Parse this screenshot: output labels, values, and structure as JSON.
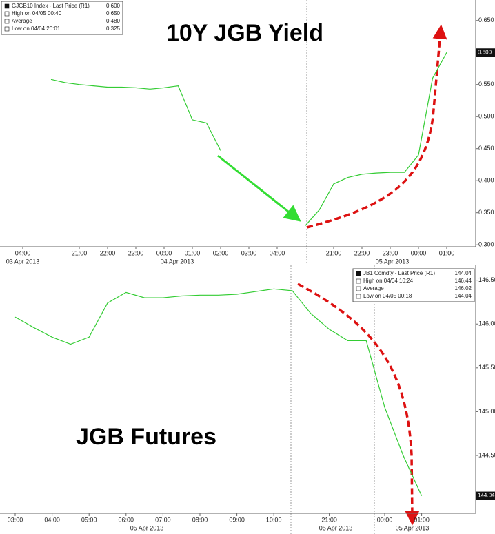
{
  "chart_data": [
    {
      "type": "line",
      "title": "10Y JGB Yield",
      "categories": [
        "04:00",
        null,
        null,
        null,
        "21:00",
        null,
        "22:00",
        null,
        "23:00",
        null,
        "00:00",
        null,
        "01:00",
        null,
        "02:00",
        null,
        "03:00",
        null,
        "04:00",
        null,
        null,
        null,
        "21:00",
        null,
        "22:00",
        null,
        "23:00",
        null,
        "00:00",
        null,
        "01:00"
      ],
      "values": [
        null,
        null,
        0.558,
        0.553,
        0.55,
        0.548,
        0.546,
        0.546,
        0.545,
        0.543,
        0.545,
        0.548,
        0.495,
        0.49,
        0.447,
        null,
        null,
        null,
        null,
        null,
        0.33,
        0.355,
        0.395,
        0.405,
        0.41,
        0.412,
        0.413,
        0.413,
        0.44,
        0.56,
        0.6
      ],
      "color": "#33cc33",
      "date_labels": [
        "03 Apr 2013",
        "04 Apr 2013",
        "05 Apr 2013"
      ],
      "ylim": [
        0.297,
        0.682
      ],
      "yticks": [
        {
          "value": 0.65,
          "label": "0.650"
        },
        {
          "value": 0.6,
          "label": "0.600"
        },
        {
          "value": 0.55,
          "label": "0.550"
        },
        {
          "value": 0.5,
          "label": "0.500"
        },
        {
          "value": 0.45,
          "label": "0.450"
        },
        {
          "value": 0.4,
          "label": "0.400"
        },
        {
          "value": 0.35,
          "label": "0.350"
        },
        {
          "value": 0.3,
          "label": "0.300"
        }
      ],
      "last_price": {
        "value": 0.6,
        "label": "0.600"
      },
      "legend": [
        {
          "label": "GJGB10 Index - Last Price (R1)",
          "value": "0.600"
        },
        {
          "label": "High on 04/05 00:40",
          "value": "0.650"
        },
        {
          "label": "Average",
          "value": "0.480"
        },
        {
          "label": "Low on 04/04 20:01",
          "value": "0.325"
        }
      ]
    },
    {
      "type": "line",
      "title": "JGB Futures",
      "categories": [
        "03:00",
        null,
        "04:00",
        null,
        "05:00",
        null,
        "06:00",
        null,
        "07:00",
        null,
        "08:00",
        null,
        "09:00",
        null,
        "10:00",
        null,
        null,
        "21:00",
        null,
        null,
        "00:00",
        null,
        "01:00"
      ],
      "values": [
        146.08,
        145.96,
        145.85,
        145.77,
        145.85,
        146.24,
        146.36,
        146.3,
        146.3,
        146.32,
        146.33,
        146.33,
        146.34,
        146.37,
        146.4,
        146.38,
        146.12,
        145.94,
        145.81,
        145.81,
        145.05,
        144.5,
        144.04
      ],
      "color": "#33cc33",
      "date_labels": [
        "05 Apr 2013",
        "05 Apr 2013",
        "05 Apr 2013"
      ],
      "ylim": [
        143.84,
        146.67
      ],
      "yticks": [
        {
          "value": 146.5,
          "label": "146.50"
        },
        {
          "value": 146,
          "label": "146.00"
        },
        {
          "value": 145.5,
          "label": "145.50"
        },
        {
          "value": 145,
          "label": "145.00"
        },
        {
          "value": 144.5,
          "label": "144.50"
        }
      ],
      "last_price": {
        "value": 144.04,
        "label": "144.04"
      },
      "legend": [
        {
          "label": "JB1 Comdty - Last Price (R1)",
          "value": "144.04"
        },
        {
          "label": "High on 04/04 10:24",
          "value": "146.44"
        },
        {
          "label": "Average",
          "value": "146.02"
        },
        {
          "label": "Low on 04/05 00:18",
          "value": "144.04"
        }
      ]
    }
  ]
}
